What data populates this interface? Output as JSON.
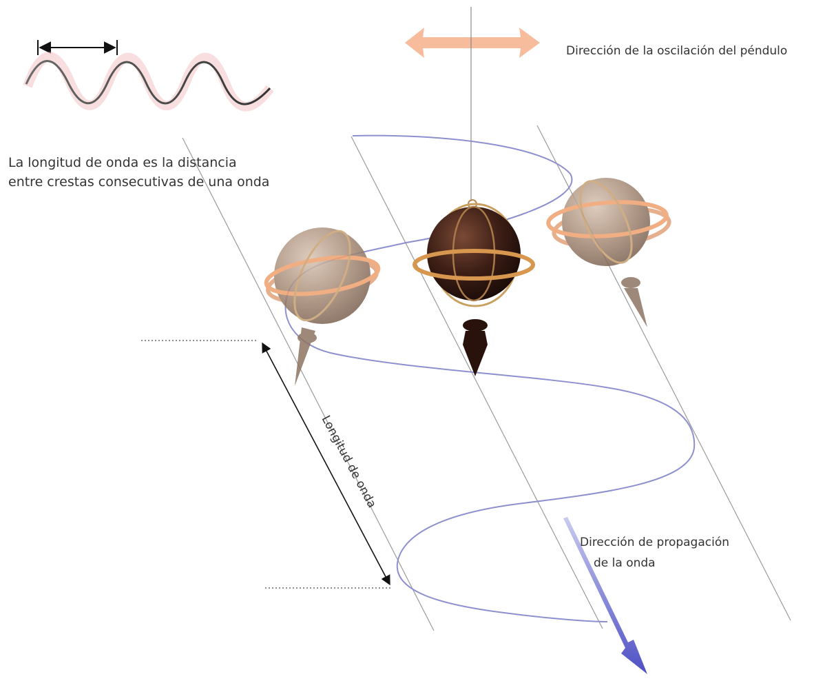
{
  "labels": {
    "oscillation_direction": "Dirección de la oscilación del péndulo",
    "wavelength_definition": "La longitud de onda es la distancia entre crestas consecutivas de una onda",
    "propagation_line1": "Dirección de propagación",
    "propagation_line2": "de la onda",
    "wavelength_axis": "Longitud de onda"
  },
  "colors": {
    "wave_path": "#8d8fcf",
    "propagation_arrow": "#5a5cc8",
    "oscillation_arrow": "#f6b08a",
    "pendulum_dark": "#3a1c14",
    "pendulum_faded": "#a48b78",
    "ring": "#d9a060"
  }
}
